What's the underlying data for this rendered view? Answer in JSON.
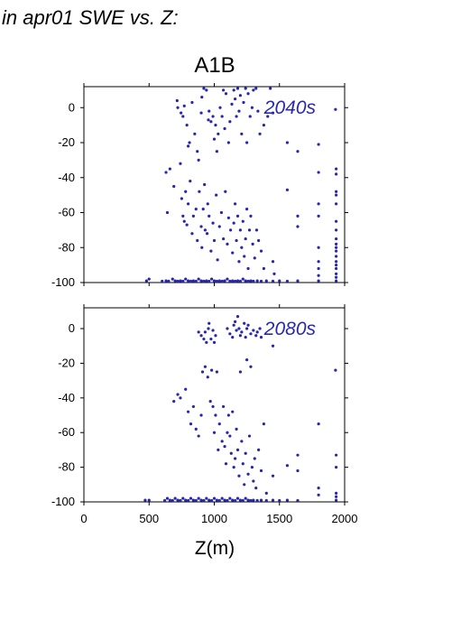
{
  "heading": "in apr01 SWE vs. Z:",
  "scenario": "A1B",
  "colors": {
    "points": "#2626b0",
    "period_label": "#2828b4",
    "frame": "#000000"
  },
  "chart_data": [
    {
      "type": "scatter",
      "annotation": "2040s",
      "xlabel": "",
      "ylabel": "",
      "xlim": [
        0,
        2000
      ],
      "ylim": [
        -100,
        12
      ],
      "yticks": [
        0,
        -20,
        -40,
        -60,
        -80,
        -100
      ],
      "grid": false,
      "points": [
        [
          715,
          4
        ],
        [
          720,
          0
        ],
        [
          745,
          -3
        ],
        [
          760,
          -5
        ],
        [
          770,
          1
        ],
        [
          790,
          -10
        ],
        [
          800,
          -22
        ],
        [
          810,
          -20
        ],
        [
          830,
          3
        ],
        [
          850,
          -15
        ],
        [
          870,
          -25
        ],
        [
          880,
          -30
        ],
        [
          900,
          -3
        ],
        [
          905,
          6
        ],
        [
          920,
          11
        ],
        [
          940,
          10
        ],
        [
          955,
          -7
        ],
        [
          960,
          -2
        ],
        [
          975,
          -8
        ],
        [
          990,
          -5
        ],
        [
          1000,
          -18
        ],
        [
          1010,
          -10
        ],
        [
          1020,
          -25
        ],
        [
          1030,
          -15
        ],
        [
          1045,
          0
        ],
        [
          1060,
          -5
        ],
        [
          1070,
          10
        ],
        [
          1080,
          -12
        ],
        [
          1090,
          8
        ],
        [
          1110,
          -20
        ],
        [
          1120,
          -8
        ],
        [
          1135,
          2
        ],
        [
          1150,
          10
        ],
        [
          1160,
          5
        ],
        [
          1170,
          -5
        ],
        [
          1180,
          11
        ],
        [
          1190,
          -2
        ],
        [
          1200,
          7
        ],
        [
          1210,
          -15
        ],
        [
          1225,
          3
        ],
        [
          1240,
          11
        ],
        [
          1250,
          -20
        ],
        [
          1260,
          8
        ],
        [
          1275,
          -5
        ],
        [
          1290,
          0
        ],
        [
          1300,
          10
        ],
        [
          1320,
          11
        ],
        [
          1335,
          -2
        ],
        [
          1350,
          -15
        ],
        [
          1380,
          -10
        ],
        [
          1410,
          -5
        ],
        [
          1430,
          11
        ],
        [
          1450,
          -3
        ],
        [
          1560,
          -20
        ],
        [
          1640,
          -25
        ],
        [
          1800,
          -21
        ],
        [
          630,
          -37
        ],
        [
          640,
          -60
        ],
        [
          660,
          -35
        ],
        [
          690,
          -45
        ],
        [
          740,
          -32
        ],
        [
          750,
          -52
        ],
        [
          760,
          -62
        ],
        [
          770,
          -65
        ],
        [
          780,
          -48
        ],
        [
          790,
          -67
        ],
        [
          800,
          -55
        ],
        [
          815,
          -42
        ],
        [
          830,
          -72
        ],
        [
          840,
          -62
        ],
        [
          860,
          -58
        ],
        [
          870,
          -76
        ],
        [
          885,
          -48
        ],
        [
          900,
          -68
        ],
        [
          905,
          -80
        ],
        [
          915,
          -58
        ],
        [
          925,
          -44
        ],
        [
          930,
          -70
        ],
        [
          945,
          -72
        ],
        [
          950,
          -55
        ],
        [
          960,
          -62
        ],
        [
          975,
          -82
        ],
        [
          990,
          -66
        ],
        [
          1000,
          -76
        ],
        [
          1015,
          -50
        ],
        [
          1025,
          -87
        ],
        [
          1040,
          -68
        ],
        [
          1055,
          -60
        ],
        [
          1070,
          -75
        ],
        [
          1085,
          -48
        ],
        [
          1100,
          -78
        ],
        [
          1110,
          -63
        ],
        [
          1125,
          -70
        ],
        [
          1140,
          -83
        ],
        [
          1150,
          -66
        ],
        [
          1160,
          -55
        ],
        [
          1170,
          -76
        ],
        [
          1180,
          -62
        ],
        [
          1190,
          -88
        ],
        [
          1200,
          -70
        ],
        [
          1210,
          -80
        ],
        [
          1220,
          -65
        ],
        [
          1230,
          -85
        ],
        [
          1240,
          -75
        ],
        [
          1250,
          -58
        ],
        [
          1260,
          -92
        ],
        [
          1270,
          -70
        ],
        [
          1280,
          -62
        ],
        [
          1295,
          -78
        ],
        [
          1310,
          -86
        ],
        [
          1325,
          -70
        ],
        [
          1340,
          -76
        ],
        [
          1360,
          -82
        ],
        [
          1380,
          -92
        ],
        [
          1450,
          -88
        ],
        [
          1460,
          -95
        ],
        [
          1560,
          -47
        ],
        [
          1640,
          -62
        ],
        [
          1640,
          -68
        ],
        [
          1800,
          -37
        ],
        [
          1800,
          -55
        ],
        [
          1800,
          -62
        ],
        [
          1800,
          -80
        ],
        [
          1800,
          -88
        ],
        [
          1800,
          -92
        ],
        [
          1800,
          -96
        ],
        [
          1800,
          -99
        ],
        [
          1935,
          -35
        ],
        [
          1935,
          -38
        ],
        [
          1935,
          -48
        ],
        [
          1935,
          -50
        ],
        [
          1935,
          -55
        ],
        [
          1935,
          -65
        ],
        [
          1935,
          -70
        ],
        [
          1935,
          -75
        ],
        [
          1935,
          -78
        ],
        [
          1935,
          -80
        ],
        [
          1935,
          -82
        ],
        [
          1935,
          -85
        ],
        [
          1935,
          -88
        ],
        [
          1935,
          -90
        ],
        [
          1935,
          -92
        ],
        [
          1935,
          -95
        ],
        [
          1935,
          -97
        ],
        [
          1935,
          -99
        ],
        [
          1930,
          -1
        ],
        [
          480,
          -99
        ],
        [
          500,
          -98
        ],
        [
          600,
          -100
        ],
        [
          630,
          -99
        ],
        [
          650,
          -100
        ],
        [
          680,
          -98
        ],
        [
          700,
          -99
        ],
        [
          720,
          -100
        ],
        [
          740,
          -99
        ],
        [
          760,
          -100
        ],
        [
          780,
          -98
        ],
        [
          800,
          -99
        ],
        [
          820,
          -100
        ],
        [
          840,
          -99
        ],
        [
          860,
          -100
        ],
        [
          880,
          -98
        ],
        [
          900,
          -99
        ],
        [
          920,
          -100
        ],
        [
          940,
          -99
        ],
        [
          960,
          -100
        ],
        [
          980,
          -98
        ],
        [
          1000,
          -99
        ],
        [
          1020,
          -100
        ],
        [
          1040,
          -99
        ],
        [
          1060,
          -100
        ],
        [
          1080,
          -99
        ],
        [
          1100,
          -98
        ],
        [
          1120,
          -100
        ],
        [
          1140,
          -99
        ],
        [
          1160,
          -100
        ],
        [
          1180,
          -99
        ],
        [
          1200,
          -100
        ],
        [
          1220,
          -98
        ],
        [
          1240,
          -99
        ],
        [
          1260,
          -100
        ],
        [
          1280,
          -99
        ],
        [
          1300,
          -100
        ],
        [
          1330,
          -99
        ],
        [
          1360,
          -100
        ],
        [
          1400,
          -99
        ],
        [
          1450,
          -100
        ],
        [
          1500,
          -99
        ],
        [
          1560,
          -100
        ],
        [
          1640,
          -99
        ]
      ]
    },
    {
      "type": "scatter",
      "annotation": "2080s",
      "xlabel": "Z(m)",
      "ylabel": "",
      "xlim": [
        0,
        2000
      ],
      "ylim": [
        -100,
        12
      ],
      "xticks": [
        0,
        500,
        1000,
        1500,
        2000
      ],
      "yticks": [
        0,
        -20,
        -40,
        -60,
        -80,
        -100
      ],
      "grid": false,
      "points": [
        [
          880,
          -2
        ],
        [
          900,
          -4
        ],
        [
          920,
          -6
        ],
        [
          930,
          -2
        ],
        [
          940,
          -8
        ],
        [
          955,
          0
        ],
        [
          960,
          3
        ],
        [
          975,
          -6
        ],
        [
          990,
          -1
        ],
        [
          1000,
          -8
        ],
        [
          1010,
          -4
        ],
        [
          1100,
          0
        ],
        [
          1120,
          -3
        ],
        [
          1140,
          -5
        ],
        [
          1150,
          2
        ],
        [
          1160,
          4
        ],
        [
          1170,
          -1
        ],
        [
          1180,
          7
        ],
        [
          1190,
          0
        ],
        [
          1200,
          -4
        ],
        [
          1210,
          -2
        ],
        [
          1230,
          3
        ],
        [
          1240,
          -5
        ],
        [
          1250,
          0
        ],
        [
          1260,
          2
        ],
        [
          1280,
          -3
        ],
        [
          1300,
          -1
        ],
        [
          1320,
          -4
        ],
        [
          1330,
          -2
        ],
        [
          1350,
          0
        ],
        [
          1360,
          -5
        ],
        [
          690,
          -42
        ],
        [
          720,
          -38
        ],
        [
          740,
          -40
        ],
        [
          780,
          -35
        ],
        [
          800,
          -48
        ],
        [
          820,
          -55
        ],
        [
          840,
          -45
        ],
        [
          860,
          -58
        ],
        [
          880,
          -62
        ],
        [
          900,
          -50
        ],
        [
          910,
          -25
        ],
        [
          930,
          -22
        ],
        [
          950,
          -28
        ],
        [
          970,
          -42
        ],
        [
          980,
          -24
        ],
        [
          990,
          -45
        ],
        [
          1000,
          -60
        ],
        [
          1010,
          -50
        ],
        [
          1020,
          -25
        ],
        [
          1030,
          -70
        ],
        [
          1040,
          -55
        ],
        [
          1060,
          -65
        ],
        [
          1070,
          -45
        ],
        [
          1080,
          -68
        ],
        [
          1090,
          -78
        ],
        [
          1100,
          -60
        ],
        [
          1110,
          -50
        ],
        [
          1120,
          -62
        ],
        [
          1130,
          -72
        ],
        [
          1140,
          -48
        ],
        [
          1150,
          -80
        ],
        [
          1160,
          -75
        ],
        [
          1170,
          -58
        ],
        [
          1180,
          -70
        ],
        [
          1190,
          -85
        ],
        [
          1200,
          -25
        ],
        [
          1210,
          -65
        ],
        [
          1220,
          -78
        ],
        [
          1230,
          -90
        ],
        [
          1240,
          -72
        ],
        [
          1250,
          -18
        ],
        [
          1260,
          -84
        ],
        [
          1270,
          -62
        ],
        [
          1280,
          -22
        ],
        [
          1290,
          -80
        ],
        [
          1300,
          -88
        ],
        [
          1310,
          -75
        ],
        [
          1320,
          -92
        ],
        [
          1340,
          -70
        ],
        [
          1360,
          -82
        ],
        [
          1380,
          -55
        ],
        [
          1400,
          -95
        ],
        [
          1450,
          -10
        ],
        [
          1450,
          -85
        ],
        [
          1560,
          -79
        ],
        [
          1640,
          -73
        ],
        [
          1640,
          -82
        ],
        [
          1800,
          -55
        ],
        [
          1800,
          -92
        ],
        [
          1800,
          -96
        ],
        [
          1930,
          -24
        ],
        [
          1935,
          -73
        ],
        [
          1935,
          -80
        ],
        [
          1935,
          -95
        ],
        [
          1935,
          -97
        ],
        [
          1935,
          -99
        ],
        [
          470,
          -99
        ],
        [
          500,
          -99
        ],
        [
          620,
          -100
        ],
        [
          640,
          -98
        ],
        [
          660,
          -99
        ],
        [
          680,
          -100
        ],
        [
          700,
          -98
        ],
        [
          720,
          -99
        ],
        [
          740,
          -100
        ],
        [
          760,
          -98
        ],
        [
          780,
          -99
        ],
        [
          800,
          -100
        ],
        [
          820,
          -98
        ],
        [
          840,
          -99
        ],
        [
          860,
          -100
        ],
        [
          880,
          -98
        ],
        [
          900,
          -99
        ],
        [
          920,
          -100
        ],
        [
          940,
          -98
        ],
        [
          960,
          -99
        ],
        [
          980,
          -100
        ],
        [
          1000,
          -98
        ],
        [
          1020,
          -99
        ],
        [
          1040,
          -100
        ],
        [
          1060,
          -98
        ],
        [
          1080,
          -99
        ],
        [
          1100,
          -100
        ],
        [
          1120,
          -98
        ],
        [
          1140,
          -99
        ],
        [
          1160,
          -100
        ],
        [
          1180,
          -98
        ],
        [
          1200,
          -99
        ],
        [
          1220,
          -100
        ],
        [
          1240,
          -98
        ],
        [
          1260,
          -99
        ],
        [
          1280,
          -100
        ],
        [
          1300,
          -99
        ],
        [
          1330,
          -100
        ],
        [
          1360,
          -99
        ],
        [
          1400,
          -100
        ],
        [
          1450,
          -99
        ],
        [
          1500,
          -100
        ],
        [
          1560,
          -99
        ],
        [
          1640,
          -100
        ]
      ]
    }
  ]
}
